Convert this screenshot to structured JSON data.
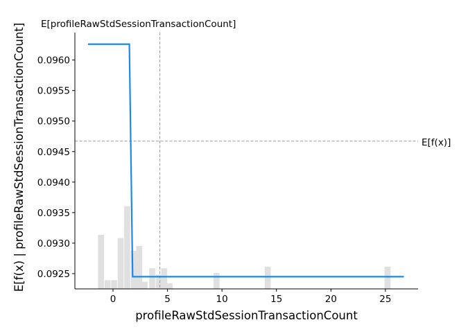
{
  "chart_data": {
    "type": "line",
    "xlabel": "profileRawStdSessionTransactionCount",
    "ylabel": "E[f(x) | profileRawStdSessionTransactionCount]",
    "xlim": [
      -3.5,
      28.0
    ],
    "ylim": [
      0.09225,
      0.09645
    ],
    "x_ticks": [
      0,
      5,
      10,
      15,
      20,
      25
    ],
    "y_ticks": [
      0.0925,
      0.093,
      0.0935,
      0.094,
      0.0945,
      0.095,
      0.0955,
      0.096
    ],
    "y_tick_labels": [
      "0.0925",
      "0.0930",
      "0.0935",
      "0.0940",
      "0.0945",
      "0.0950",
      "0.0955",
      "0.0960"
    ],
    "grid": false,
    "series": [
      {
        "color": "#1e88e5",
        "points": [
          [
            -2.3,
            0.09626
          ],
          [
            1.5,
            0.09626
          ],
          [
            1.8,
            0.09245
          ],
          [
            26.7,
            0.09245
          ]
        ]
      }
    ],
    "expected_value_line": {
      "y": 0.09467,
      "label": "E[f(x)]"
    },
    "expected_feature_line": {
      "x": 4.3,
      "label": "E[profileRawStdSessionTransactionCount]"
    },
    "histogram": {
      "color": "#e0e0e0",
      "bin_width": 0.55,
      "bins": [
        {
          "x": -1.1,
          "h": 0.34
        },
        {
          "x": -0.5,
          "h": 0.055
        },
        {
          "x": 0.1,
          "h": 0.055
        },
        {
          "x": 0.7,
          "h": 0.32
        },
        {
          "x": 1.3,
          "h": 0.52
        },
        {
          "x": 1.9,
          "h": 0.24
        },
        {
          "x": 2.4,
          "h": 0.27
        },
        {
          "x": 2.9,
          "h": 0.045
        },
        {
          "x": 3.6,
          "h": 0.13
        },
        {
          "x": 4.2,
          "h": 0.09
        },
        {
          "x": 4.7,
          "h": 0.13
        },
        {
          "x": 5.2,
          "h": 0.035
        },
        {
          "x": 9.5,
          "h": 0.1
        },
        {
          "x": 14.2,
          "h": 0.14
        },
        {
          "x": 25.2,
          "h": 0.14
        }
      ]
    }
  }
}
